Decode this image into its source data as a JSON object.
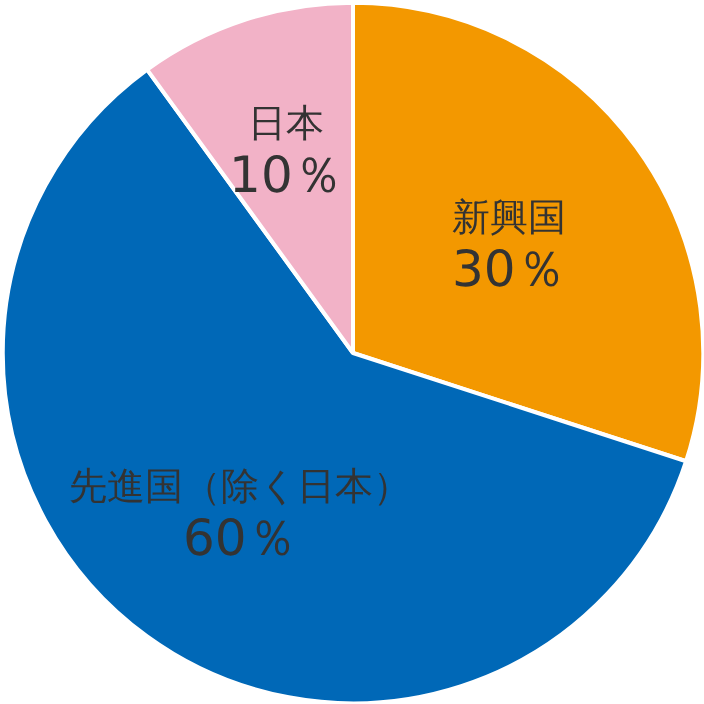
{
  "chart_data": {
    "type": "pie",
    "categories": [
      "新興国",
      "先進国（除く日本）",
      "日本"
    ],
    "values": [
      30,
      60,
      10
    ],
    "colors": [
      "#f39800",
      "#0068b7",
      "#f2b2c7"
    ],
    "value_labels": [
      "30％",
      "60％",
      "10％"
    ]
  }
}
